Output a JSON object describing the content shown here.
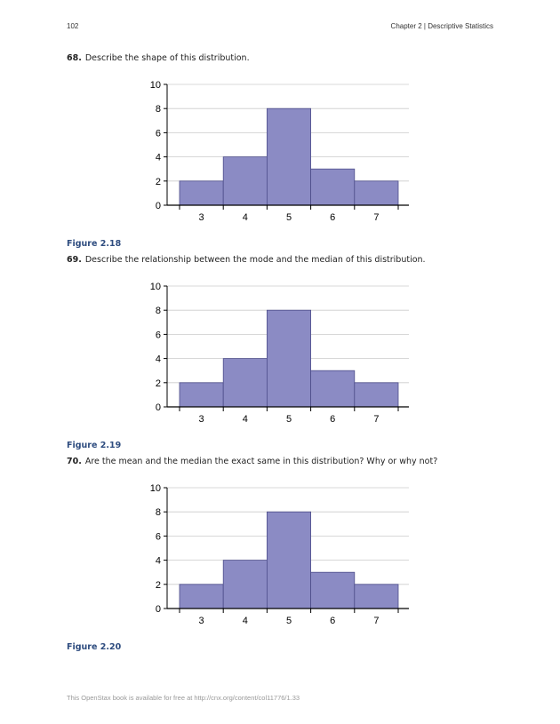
{
  "header": {
    "page_number": "102",
    "chapter": "Chapter 2 | Descriptive Statistics"
  },
  "questions": [
    {
      "number": "68.",
      "text": "Describe the shape of this distribution.",
      "caption": "Figure 2.18"
    },
    {
      "number": "69.",
      "text": "Describe the relationship between the mode and the median of this distribution.",
      "caption": "Figure 2.19"
    },
    {
      "number": "70.",
      "text": "Are the mean and the median the exact same in this distribution? Why or why not?",
      "caption": "Figure 2.20"
    }
  ],
  "chart_data": [
    {
      "type": "bar",
      "categories": [
        "3",
        "4",
        "5",
        "6",
        "7"
      ],
      "values": [
        2,
        4,
        8,
        3,
        2
      ],
      "ylim": [
        0,
        10
      ],
      "yticks": [
        0,
        2,
        4,
        6,
        8,
        10
      ],
      "grid": true,
      "bar_color": "#8b8bc4",
      "title": "",
      "xlabel": "",
      "ylabel": ""
    },
    {
      "type": "bar",
      "categories": [
        "3",
        "4",
        "5",
        "6",
        "7"
      ],
      "values": [
        2,
        4,
        8,
        3,
        2
      ],
      "ylim": [
        0,
        10
      ],
      "yticks": [
        0,
        2,
        4,
        6,
        8,
        10
      ],
      "grid": true,
      "bar_color": "#8b8bc4",
      "title": "",
      "xlabel": "",
      "ylabel": ""
    },
    {
      "type": "bar",
      "categories": [
        "3",
        "4",
        "5",
        "6",
        "7"
      ],
      "values": [
        2,
        4,
        8,
        3,
        2
      ],
      "ylim": [
        0,
        10
      ],
      "yticks": [
        0,
        2,
        4,
        6,
        8,
        10
      ],
      "grid": true,
      "bar_color": "#8b8bc4",
      "title": "",
      "xlabel": "",
      "ylabel": ""
    }
  ],
  "footer": {
    "text": "This OpenStax book is available for free at http://cnx.org/content/col11776/1.33"
  }
}
